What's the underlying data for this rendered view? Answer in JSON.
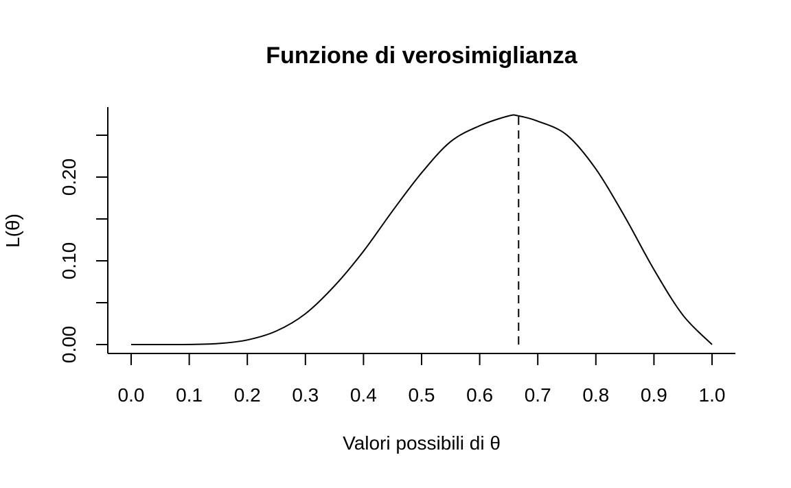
{
  "chart_data": {
    "type": "line",
    "title": "Funzione di verosimiglianza",
    "xlabel": "Valori possibili di θ",
    "ylabel": "L(θ)",
    "xlim": [
      0,
      1
    ],
    "ylim": [
      0,
      0.273
    ],
    "x_ticks": [
      0.0,
      0.1,
      0.2,
      0.3,
      0.4,
      0.5,
      0.6,
      0.7,
      0.8,
      0.9,
      1.0
    ],
    "x_tick_labels": [
      "0.0",
      "0.1",
      "0.2",
      "0.3",
      "0.4",
      "0.5",
      "0.6",
      "0.7",
      "0.8",
      "0.9",
      "1.0"
    ],
    "y_ticks": [
      0.0,
      0.05,
      0.1,
      0.15,
      0.2,
      0.25
    ],
    "y_tick_labels": [
      "0.00",
      "",
      "0.10",
      "",
      "0.20",
      ""
    ],
    "series": [
      {
        "name": "L(θ)",
        "x": [
          0.0,
          0.05,
          0.1,
          0.15,
          0.2,
          0.25,
          0.3,
          0.35,
          0.4,
          0.45,
          0.5,
          0.55,
          0.6,
          0.65,
          0.667,
          0.7,
          0.75,
          0.8,
          0.85,
          0.9,
          0.95,
          1.0
        ],
        "y": [
          0.0,
          2e-06,
          0.00012,
          0.0012,
          0.0055,
          0.0162,
          0.0368,
          0.07,
          0.1115,
          0.1596,
          0.2051,
          0.2424,
          0.2613,
          0.2731,
          0.2731,
          0.2668,
          0.2503,
          0.2097,
          0.1525,
          0.0896,
          0.035,
          0.0
        ]
      }
    ],
    "annotations": [
      {
        "type": "vline",
        "x": 0.667,
        "y_end": 0.2731,
        "style": "dashed"
      }
    ]
  }
}
